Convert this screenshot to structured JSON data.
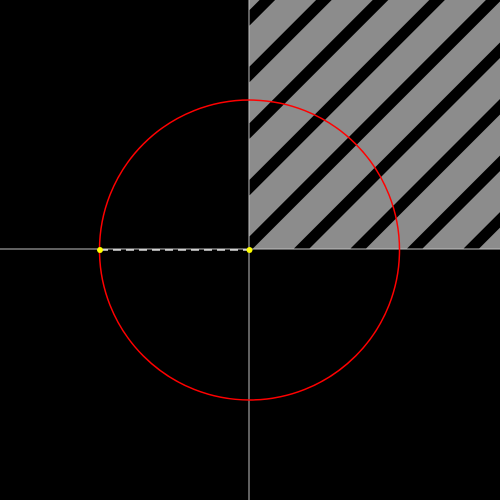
{
  "scene": {
    "background_color": "#000000",
    "axis_color": "#bfbfbf",
    "hatch_light_color": "#8c8c8c",
    "hatch_dark_color": "#000000",
    "circle_color": "#ff0000",
    "point_color": "#ffff00",
    "radius_segment_color": "#d9d9d9",
    "hatched_quadrant": "top-right",
    "hatch_direction": "diagonal-ascending",
    "circle_center_point": "origin",
    "marked_points": [
      "origin",
      "circle-left-intersection"
    ],
    "radius_segment_style": "dashed"
  }
}
